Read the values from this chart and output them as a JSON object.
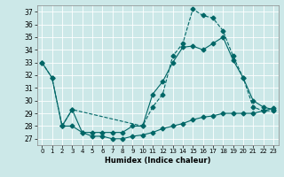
{
  "xlabel": "Humidex (Indice chaleur)",
  "background_color": "#cce8e8",
  "grid_color": "#ffffff",
  "line_color": "#006666",
  "xlim": [
    -0.5,
    23.5
  ],
  "ylim": [
    26.5,
    37.5
  ],
  "yticks": [
    27,
    28,
    29,
    30,
    31,
    32,
    33,
    34,
    35,
    36,
    37
  ],
  "xticks": [
    0,
    1,
    2,
    3,
    4,
    5,
    6,
    7,
    8,
    9,
    10,
    11,
    12,
    13,
    14,
    15,
    16,
    17,
    18,
    19,
    20,
    21,
    22,
    23
  ],
  "line1_x": [
    0,
    1,
    2,
    3,
    4,
    5,
    6,
    7,
    8,
    9,
    10,
    11,
    12,
    13,
    14,
    15,
    16,
    17,
    18,
    19,
    20,
    21,
    22,
    23
  ],
  "line1_y": [
    33.0,
    31.8,
    28.0,
    29.3,
    27.5,
    27.5,
    27.5,
    27.5,
    27.5,
    28.0,
    28.0,
    30.5,
    31.5,
    33.0,
    34.2,
    34.3,
    34.0,
    34.5,
    35.0,
    33.2,
    31.8,
    30.0,
    29.5,
    29.3
  ],
  "line2_x": [
    0,
    1,
    2,
    3,
    10,
    11,
    12,
    13,
    14,
    15,
    16,
    17,
    18,
    19,
    20,
    21,
    22,
    23
  ],
  "line2_y": [
    33.0,
    31.8,
    28.0,
    29.3,
    28.0,
    29.5,
    30.5,
    33.5,
    34.5,
    37.2,
    36.7,
    36.5,
    35.5,
    33.5,
    31.8,
    29.5,
    29.2,
    29.2
  ],
  "line3_x": [
    2,
    3,
    4,
    5,
    6,
    7,
    8,
    9,
    10,
    11,
    12,
    13,
    14,
    15,
    16,
    17,
    18,
    19,
    20,
    21,
    22,
    23
  ],
  "line3_y": [
    28.0,
    28.0,
    27.5,
    27.2,
    27.2,
    27.0,
    27.0,
    27.2,
    27.3,
    27.5,
    27.8,
    28.0,
    28.2,
    28.5,
    28.7,
    28.8,
    29.0,
    29.0,
    29.0,
    29.0,
    29.2,
    29.4
  ],
  "markersize": 2.5
}
